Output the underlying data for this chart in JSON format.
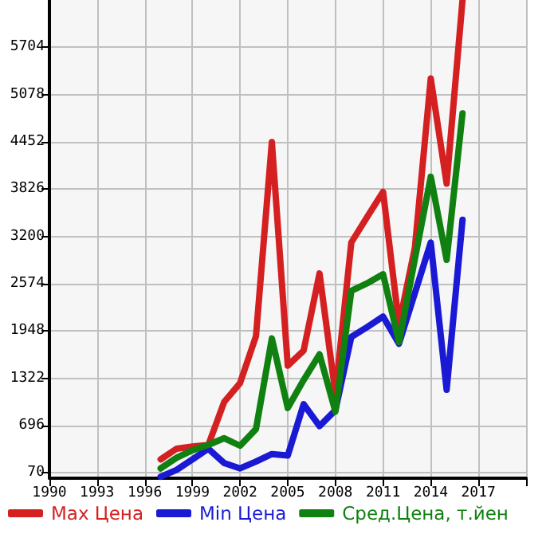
{
  "chart_data": {
    "type": "line",
    "x": [
      1997,
      1998,
      1999,
      2000,
      2001,
      2002,
      2003,
      2004,
      2005,
      2006,
      2007,
      2008,
      2009,
      2010,
      2011,
      2012,
      2013,
      2014,
      2015,
      2016
    ],
    "series": [
      {
        "name": "Max Цена",
        "color": "#d42020",
        "values": [
          250,
          390,
          420,
          440,
          1010,
          1260,
          1880,
          4450,
          1490,
          1690,
          2710,
          1120,
          3120,
          3460,
          3790,
          2030,
          3050,
          5290,
          3900,
          6330
        ]
      },
      {
        "name": "Min Цена",
        "color": "#1a1ad4",
        "values": [
          20,
          110,
          250,
          390,
          200,
          130,
          220,
          320,
          300,
          980,
          690,
          900,
          1870,
          2000,
          2140,
          1780,
          2450,
          3120,
          1170,
          3420
        ]
      },
      {
        "name": "Сред.Цена, т.йен",
        "color": "#108010",
        "values": [
          130,
          270,
          370,
          440,
          530,
          430,
          650,
          1850,
          930,
          1300,
          1640,
          880,
          2480,
          2580,
          2700,
          1800,
          2900,
          3990,
          2890,
          4830
        ]
      }
    ],
    "xlim": [
      1990,
      2020
    ],
    "xticks": [
      1990,
      1993,
      1996,
      1999,
      2002,
      2005,
      2008,
      2011,
      2014,
      2017,
      {
        "value": 2020,
        "label": null
      }
    ],
    "ylim": [
      0,
      6330
    ],
    "yticks": [
      70,
      696,
      1322,
      1948,
      2574,
      3200,
      3826,
      4452,
      5078,
      5704
    ],
    "grid": true,
    "legend": "bottom",
    "marker": "none",
    "line_style": "solid"
  }
}
